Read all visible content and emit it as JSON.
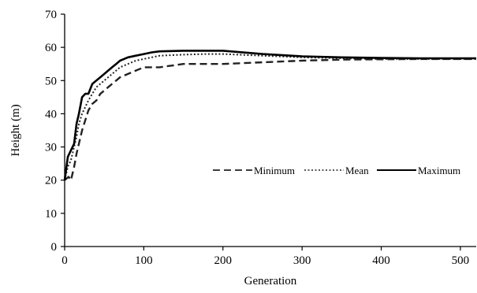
{
  "chart_data": {
    "type": "line",
    "title": "",
    "xlabel": "Generation",
    "ylabel": "Height (m)",
    "xlim": [
      0,
      520
    ],
    "ylim": [
      0,
      70
    ],
    "xticks": [
      0,
      100,
      200,
      300,
      400,
      500
    ],
    "yticks": [
      0,
      10,
      20,
      30,
      40,
      50,
      60,
      70
    ],
    "grid": false,
    "legend_position": "right",
    "series": [
      {
        "name": "Minimum",
        "style": "dashed",
        "color": "#222222",
        "x": [
          0,
          5,
          8,
          12,
          15,
          18,
          22,
          26,
          30,
          35,
          40,
          45,
          50,
          55,
          60,
          65,
          70,
          80,
          90,
          100,
          110,
          120,
          150,
          180,
          200,
          250,
          300,
          350,
          400,
          450,
          520
        ],
        "y": [
          20,
          21,
          20,
          24,
          28,
          31,
          35,
          38,
          41,
          43,
          44,
          46,
          47,
          48,
          49,
          50,
          51,
          52,
          53,
          54,
          54,
          54,
          55,
          55,
          55,
          55.5,
          56,
          56.3,
          56.4,
          56.5,
          56.5
        ]
      },
      {
        "name": "Mean",
        "style": "dotted",
        "color": "#222222",
        "x": [
          0,
          4,
          8,
          12,
          15,
          18,
          22,
          26,
          30,
          35,
          40,
          45,
          50,
          55,
          60,
          65,
          70,
          80,
          90,
          100,
          110,
          120,
          150,
          180,
          200,
          250,
          300,
          350,
          400,
          450,
          520
        ],
        "y": [
          20,
          24,
          26,
          30,
          33,
          37,
          40,
          42,
          44,
          46,
          48,
          49,
          50,
          51,
          52,
          53,
          54,
          55,
          56,
          56.5,
          57,
          57.5,
          57.8,
          58,
          58,
          57.5,
          57,
          56.7,
          56.5,
          56.5,
          56.5
        ]
      },
      {
        "name": "Maximum",
        "style": "solid",
        "color": "#000000",
        "x": [
          0,
          4,
          8,
          12,
          15,
          18,
          22,
          26,
          30,
          35,
          40,
          45,
          50,
          55,
          60,
          65,
          70,
          80,
          90,
          100,
          110,
          120,
          150,
          180,
          200,
          250,
          300,
          350,
          400,
          450,
          520
        ],
        "y": [
          20,
          27,
          29,
          31,
          37,
          40,
          45,
          46,
          46,
          49,
          50,
          51,
          52,
          53,
          54,
          55,
          56,
          57,
          57.5,
          58,
          58.5,
          58.8,
          59,
          59,
          59,
          58,
          57.3,
          57,
          56.8,
          56.7,
          56.7
        ]
      }
    ]
  }
}
